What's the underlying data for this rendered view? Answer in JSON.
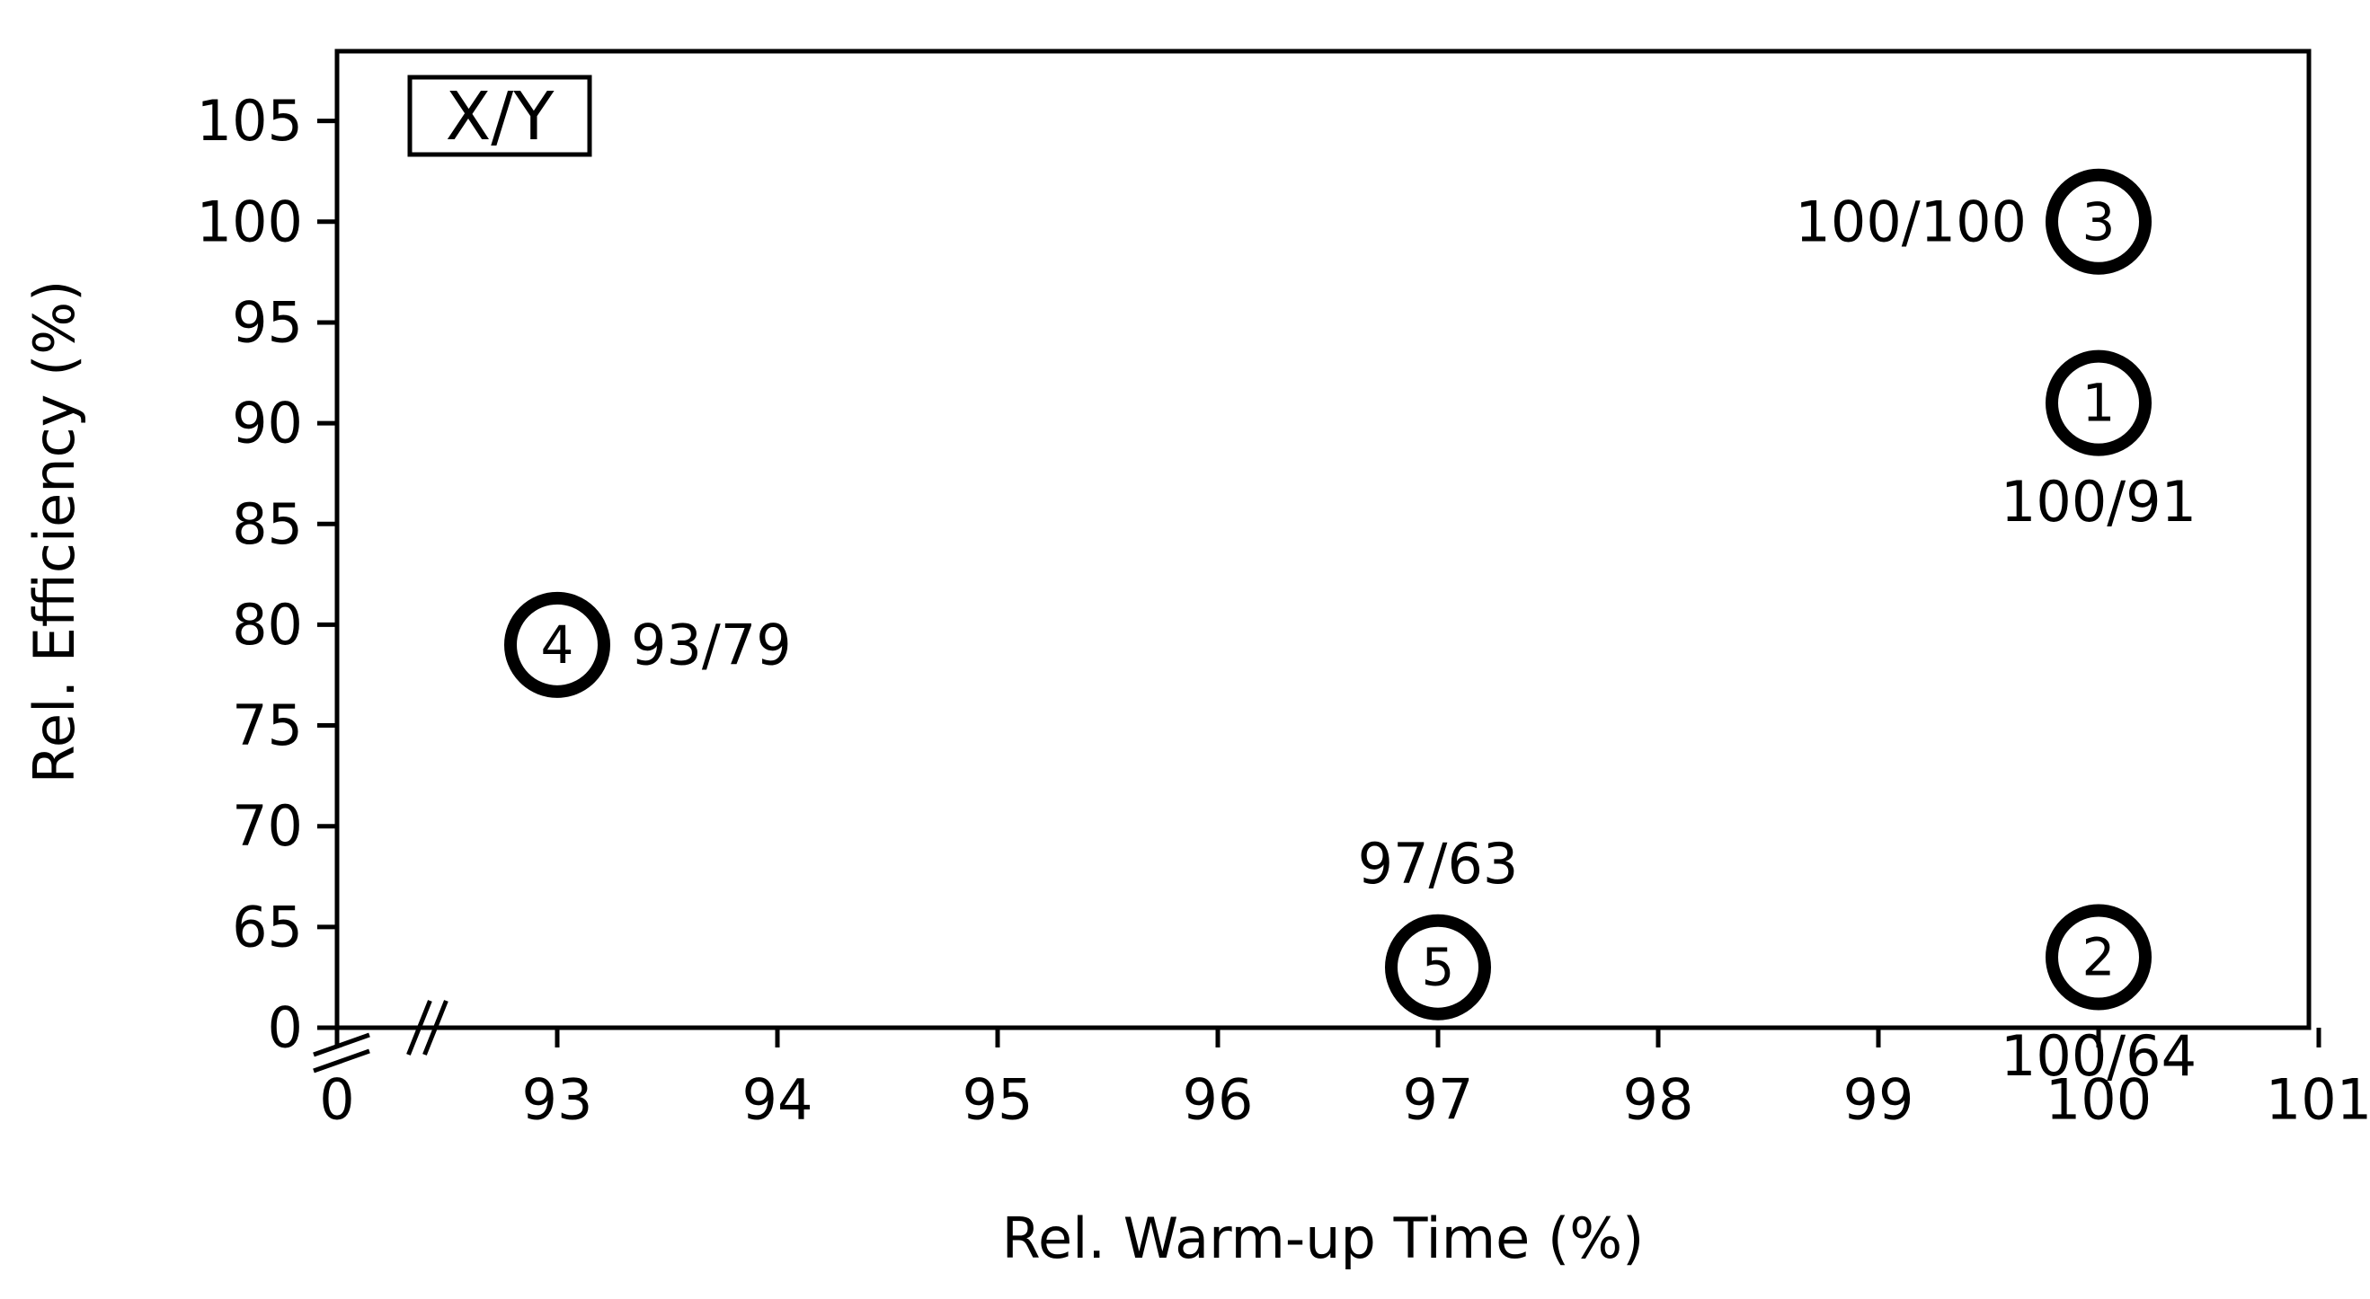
{
  "chart_data": {
    "type": "scatter",
    "title": "",
    "xlabel": "Rel. Warm-up Time (%)",
    "ylabel": "Rel. Efficiency (%)",
    "legend_box": "X/Y",
    "legend_placement": "top-left",
    "grid": false,
    "axis_breaks": {
      "x": true,
      "y": true
    },
    "x_ticks": [
      "0",
      "93",
      "94",
      "95",
      "96",
      "97",
      "98",
      "99",
      "100",
      "101"
    ],
    "y_ticks": [
      "0",
      "65",
      "70",
      "75",
      "80",
      "85",
      "90",
      "95",
      "100",
      "105"
    ],
    "xlim": [
      92,
      101
    ],
    "ylim": [
      60,
      105
    ],
    "points": [
      {
        "id": "1",
        "x": 100,
        "y": 91,
        "label": "100/91",
        "label_position": "below"
      },
      {
        "id": "2",
        "x": 100,
        "y": 63.5,
        "label": "100/64",
        "label_position": "below"
      },
      {
        "id": "3",
        "x": 100,
        "y": 100,
        "label": "100/100",
        "label_position": "left"
      },
      {
        "id": "4",
        "x": 93,
        "y": 79,
        "label": "93/79",
        "label_position": "right"
      },
      {
        "id": "5",
        "x": 97,
        "y": 63,
        "label": "97/63",
        "label_position": "above"
      }
    ]
  }
}
